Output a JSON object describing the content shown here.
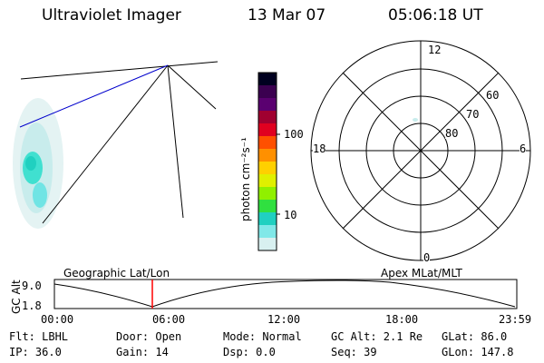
{
  "header": {
    "title": "Ultraviolet Imager",
    "date": "13 Mar 07",
    "time": "05:06:18 UT"
  },
  "colorbar": {
    "unit_label": "photon cm⁻²s⁻¹",
    "ticks": [
      "100",
      "10"
    ],
    "scale": "log",
    "colors": [
      "#000020",
      "#3b0050",
      "#5a0070",
      "#a00030",
      "#e00020",
      "#ff5000",
      "#ff9000",
      "#ffd000",
      "#e0f000",
      "#90f000",
      "#30e040",
      "#20d0c0",
      "#80e8e8",
      "#d8f0f0"
    ]
  },
  "polar_plot": {
    "mlt_labels": [
      "12",
      "18",
      "6",
      "0"
    ],
    "lat_labels": [
      "60",
      "70",
      "80"
    ]
  },
  "orbit_plot": {
    "left_label": "Geographic Lat/Lon",
    "right_label": "Apex MLat/MLT",
    "y_axis_label": "GC Alt",
    "y_ticks": [
      "9.0",
      "1.8"
    ],
    "x_ticks": [
      "00:00",
      "06:00",
      "12:00",
      "18:00",
      "23:59"
    ],
    "marker_color": "#ff0000"
  },
  "status": {
    "flt": "Flt: LBHL",
    "door": "Door: Open",
    "mode": "Mode: Normal",
    "gc_alt": "GC Alt: 2.1 Re",
    "glat": "GLat:  86.0",
    "ip": "IP: 36.0",
    "gain": "Gain: 14",
    "dsp": "Dsp:    0.0",
    "seq": "Seq: 39",
    "glon": "GLon: 147.8"
  }
}
